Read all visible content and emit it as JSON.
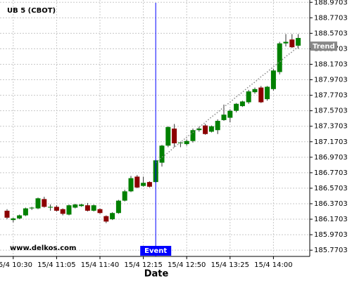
{
  "chart_data": {
    "type": "candlestick",
    "title": "UB 5 (CBOT)",
    "x_label": "Date",
    "watermark": "www.delkos.com",
    "categories": [
      null,
      "15/4 10:30",
      null,
      null,
      null,
      null,
      null,
      null,
      "15/4 11:05",
      null,
      null,
      null,
      null,
      null,
      null,
      "15/4 11:40",
      null,
      null,
      null,
      null,
      null,
      null,
      "15/4 12:15",
      null,
      null,
      null,
      null,
      null,
      null,
      "15/4 12:50",
      null,
      null,
      null,
      null,
      null,
      null,
      "15/4 13:25",
      null,
      null,
      null,
      null,
      null,
      null,
      "15/4 14:00",
      null,
      null,
      null,
      null
    ],
    "open": [
      186.28,
      186.16,
      186.18,
      186.22,
      186.31,
      186.31,
      186.43,
      186.32,
      186.33,
      186.3,
      186.23,
      186.32,
      186.34,
      186.35,
      186.28,
      186.3,
      186.21,
      186.17,
      186.25,
      186.41,
      186.53,
      186.72,
      186.6,
      186.65,
      186.65,
      186.9,
      187.12,
      187.34,
      187.15,
      187.14,
      187.18,
      187.32,
      187.38,
      187.3,
      187.32,
      187.45,
      187.48,
      187.57,
      187.63,
      187.68,
      187.81,
      187.87,
      187.72,
      187.85,
      188.07,
      188.44,
      188.49,
      188.41
    ],
    "high": [
      186.3,
      186.19,
      186.23,
      186.32,
      186.33,
      186.45,
      186.46,
      186.36,
      186.35,
      186.31,
      186.36,
      186.37,
      186.37,
      186.38,
      186.36,
      186.31,
      186.22,
      186.26,
      186.42,
      186.55,
      186.73,
      186.74,
      186.72,
      186.66,
      186.94,
      187.13,
      187.37,
      187.4,
      187.17,
      187.2,
      187.34,
      187.36,
      187.4,
      187.38,
      187.46,
      187.65,
      187.59,
      187.67,
      187.7,
      187.84,
      187.87,
      187.89,
      187.89,
      188.11,
      188.46,
      188.56,
      188.56,
      188.56
    ],
    "low": [
      186.17,
      186.13,
      186.17,
      186.21,
      186.29,
      186.3,
      186.32,
      186.28,
      186.27,
      186.22,
      186.22,
      186.31,
      186.33,
      186.27,
      186.27,
      186.24,
      186.12,
      186.16,
      186.24,
      186.4,
      186.52,
      186.57,
      186.59,
      186.58,
      186.64,
      186.85,
      187.1,
      187.1,
      187.1,
      187.12,
      187.16,
      187.3,
      187.26,
      187.29,
      187.27,
      187.44,
      187.42,
      187.55,
      187.62,
      187.66,
      187.79,
      187.67,
      187.7,
      187.83,
      188.04,
      188.4,
      188.38,
      188.37
    ],
    "close": [
      186.19,
      186.18,
      186.22,
      186.31,
      186.32,
      186.44,
      186.33,
      186.33,
      186.28,
      186.24,
      186.35,
      186.36,
      186.36,
      186.28,
      186.35,
      186.25,
      186.14,
      186.25,
      186.41,
      186.53,
      186.7,
      186.58,
      186.64,
      186.59,
      186.93,
      187.12,
      187.36,
      187.15,
      187.16,
      187.18,
      187.32,
      187.34,
      187.27,
      187.37,
      187.44,
      187.52,
      187.57,
      187.66,
      187.69,
      187.82,
      187.85,
      187.68,
      187.88,
      188.09,
      188.44,
      188.46,
      188.39,
      188.51
    ],
    "up_color": "#008000",
    "down_color": "#8b0000",
    "trend": {
      "label": "Trend",
      "color": "#888888",
      "values": [
        null,
        null,
        null,
        null,
        null,
        null,
        null,
        null,
        null,
        null,
        null,
        null,
        null,
        null,
        null,
        null,
        null,
        null,
        null,
        null,
        null,
        null,
        null,
        null,
        186.9,
        186.97,
        187.03,
        187.1,
        187.16,
        187.23,
        187.29,
        187.36,
        187.42,
        187.49,
        187.55,
        187.62,
        187.68,
        187.75,
        187.81,
        187.88,
        187.94,
        188.01,
        188.07,
        188.14,
        188.2,
        188.27,
        188.33,
        188.4
      ]
    },
    "event": {
      "label": "Event",
      "at": 24,
      "color": "#0000ff"
    },
    "ylim": [
      185.69,
      189.0
    ],
    "yticks": [
      185.7703,
      185.9703,
      186.1703,
      186.3703,
      186.5703,
      186.7703,
      186.9703,
      187.1703,
      187.3703,
      187.5703,
      187.7703,
      187.9703,
      188.1703,
      188.3703,
      188.5703,
      188.7703,
      188.9703
    ],
    "grid": true
  }
}
